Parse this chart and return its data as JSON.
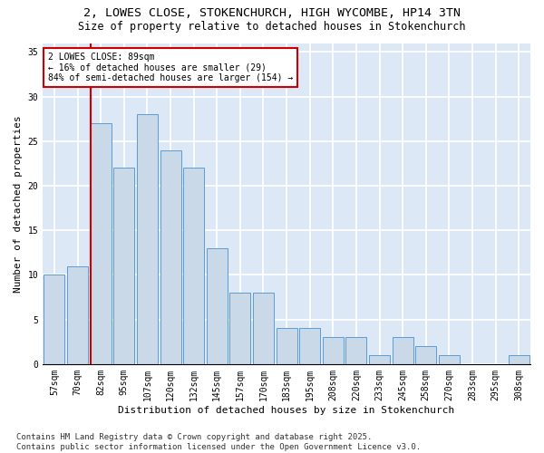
{
  "title1": "2, LOWES CLOSE, STOKENCHURCH, HIGH WYCOMBE, HP14 3TN",
  "title2": "Size of property relative to detached houses in Stokenchurch",
  "xlabel": "Distribution of detached houses by size in Stokenchurch",
  "ylabel": "Number of detached properties",
  "categories": [
    "57sqm",
    "70sqm",
    "82sqm",
    "95sqm",
    "107sqm",
    "120sqm",
    "132sqm",
    "145sqm",
    "157sqm",
    "170sqm",
    "183sqm",
    "195sqm",
    "208sqm",
    "220sqm",
    "233sqm",
    "245sqm",
    "258sqm",
    "270sqm",
    "283sqm",
    "295sqm",
    "308sqm"
  ],
  "values": [
    10,
    11,
    27,
    22,
    28,
    24,
    22,
    13,
    8,
    8,
    4,
    4,
    3,
    3,
    1,
    3,
    2,
    1,
    0,
    0,
    1
  ],
  "bar_color": "#c9d9e8",
  "bar_edge_color": "#5b9bd5",
  "annotation_text": "2 LOWES CLOSE: 89sqm\n← 16% of detached houses are smaller (29)\n84% of semi-detached houses are larger (154) →",
  "annotation_box_color": "#ffffff",
  "annotation_box_edge": "#cc0000",
  "vline_color": "#cc0000",
  "vline_x": 1.55,
  "ylim": [
    0,
    36
  ],
  "yticks": [
    0,
    5,
    10,
    15,
    20,
    25,
    30,
    35
  ],
  "background_color": "#dce8f5",
  "grid_color": "#ffffff",
  "footer": "Contains HM Land Registry data © Crown copyright and database right 2025.\nContains public sector information licensed under the Open Government Licence v3.0.",
  "title_fontsize": 9.5,
  "subtitle_fontsize": 8.5,
  "axis_label_fontsize": 8,
  "tick_fontsize": 7,
  "annotation_fontsize": 7,
  "footer_fontsize": 6.5
}
